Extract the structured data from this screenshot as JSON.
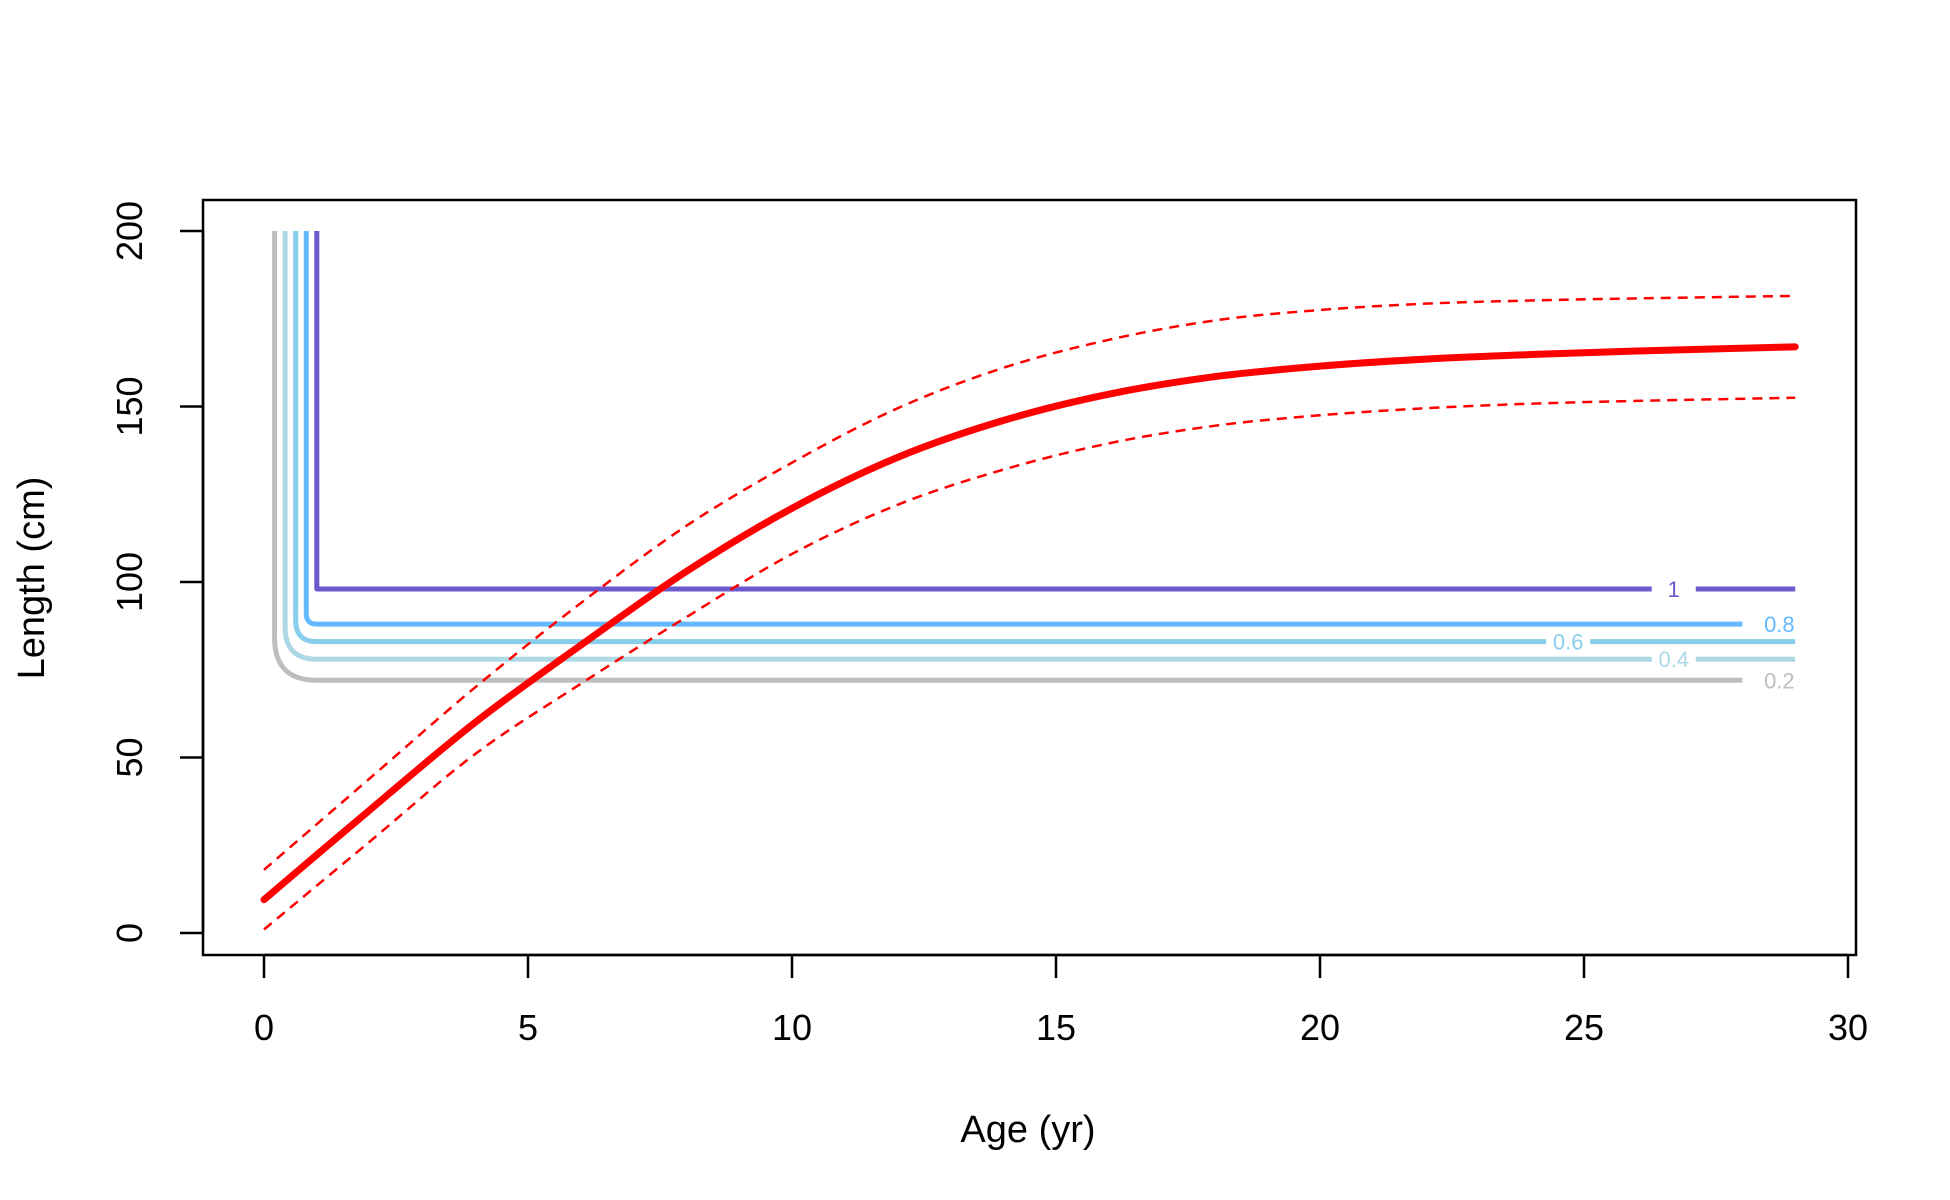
{
  "chart_data": {
    "type": "line",
    "title": "",
    "xlabel": "Age (yr)",
    "ylabel": "Length (cm)",
    "xlim": [
      0,
      30
    ],
    "ylim": [
      0,
      200
    ],
    "x_ticks": [
      0,
      5,
      10,
      15,
      20,
      25,
      30
    ],
    "x_tick_labels": [
      "0",
      "5",
      "10",
      "15",
      "20",
      "25",
      "30"
    ],
    "y_ticks": [
      0,
      50,
      100,
      150,
      200
    ],
    "y_tick_labels": [
      "0",
      "50",
      "100",
      "150",
      "200"
    ],
    "grid": false,
    "legend": "none",
    "growth_curve": {
      "color": "#ff0000",
      "x": [
        0,
        2,
        4,
        6,
        8,
        10,
        12,
        14,
        16,
        18,
        20,
        22,
        24,
        26,
        29
      ],
      "mean": [
        9.5,
        35,
        60,
        82,
        103,
        121,
        135.5,
        146,
        153.5,
        158.5,
        161.5,
        163.5,
        164.8,
        165.8,
        167
      ],
      "upper": [
        18,
        44,
        70,
        94,
        116,
        134,
        149.5,
        161,
        169,
        174.5,
        177.5,
        179.3,
        180.2,
        180.8,
        181.5
      ],
      "lower": [
        1,
        26,
        51,
        71,
        90,
        108,
        122,
        132,
        139.5,
        144.5,
        147.5,
        149.5,
        150.8,
        151.6,
        152.5
      ]
    },
    "selectivity_curves": [
      {
        "label": "1",
        "color": "#6a5acd",
        "x0": 1.0,
        "base": 98,
        "x_end": 29,
        "label_x": 26.7
      },
      {
        "label": "0.8",
        "color": "#63b8ff",
        "x0": 0.8,
        "base": 88,
        "x_end": 28,
        "label_x": 28.7
      },
      {
        "label": "0.6",
        "color": "#87ceeb",
        "x0": 0.6,
        "base": 83,
        "x_end": 29,
        "label_x": 24.7
      },
      {
        "label": "0.4",
        "color": "#add8e6",
        "x0": 0.4,
        "base": 78,
        "x_end": 29,
        "label_x": 26.7
      },
      {
        "label": "0.2",
        "color": "#bebebe",
        "x0": 0.2,
        "base": 72,
        "x_end": 28,
        "label_x": 28.7
      }
    ],
    "selectivity_top": 200
  }
}
